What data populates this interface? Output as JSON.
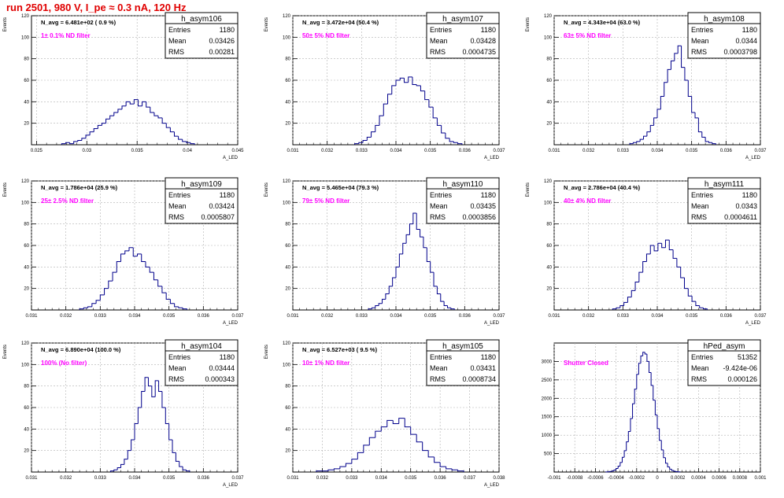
{
  "page": {
    "title": "run 2501,   980 V, I_pe ≈ 0.3 nA, 120 Hz"
  },
  "colors": {
    "title": "#e00000",
    "histogram": "#00008b",
    "filter_label": "#ff00ff",
    "grid": "#b0b0b0"
  },
  "chart_data": [
    {
      "type": "bar",
      "name": "h_asym106",
      "stats": {
        "entries_label": "Entries",
        "entries": "1180",
        "mean_label": "Mean",
        "mean": "0.03426",
        "rms_label": "RMS",
        "rms": "0.00281"
      },
      "navg": "N_avg = 6.481e+02 ( 0.9 %)",
      "filter": "1± 0.1% ND filter",
      "ylabel": "Events",
      "xlabel": "A_LED",
      "xlim": [
        0.0245,
        0.045
      ],
      "ylim": [
        0,
        120
      ],
      "xticks": [
        0.025,
        0.03,
        0.035,
        0.04,
        0.045
      ],
      "xtick_labels": [
        "0.025",
        "0.03",
        "0.035",
        "0.04",
        "0.045"
      ],
      "yticks": [
        20,
        40,
        60,
        80,
        100,
        120
      ],
      "ytick_labels": [
        "20",
        "40",
        "60",
        "80",
        "100",
        "120"
      ],
      "bin_start": 0.0275,
      "bin_width": 0.0004,
      "values": [
        1,
        2,
        1,
        3,
        4,
        6,
        9,
        12,
        15,
        18,
        20,
        24,
        27,
        30,
        33,
        36,
        40,
        38,
        42,
        36,
        40,
        35,
        30,
        27,
        25,
        20,
        16,
        12,
        8,
        5,
        3,
        2,
        1
      ]
    },
    {
      "type": "bar",
      "name": "h_asym107",
      "stats": {
        "entries_label": "Entries",
        "entries": "1180",
        "mean_label": "Mean",
        "mean": "0.03428",
        "rms_label": "RMS",
        "rms": "0.0004735"
      },
      "navg": "N_avg = 3.472e+04 (50.4 %)",
      "filter": "50± 5% ND filter",
      "ylabel": "Events",
      "xlabel": "A_LED",
      "xlim": [
        0.031,
        0.037
      ],
      "ylim": [
        0,
        120
      ],
      "xticks": [
        0.031,
        0.032,
        0.033,
        0.034,
        0.035,
        0.036,
        0.037
      ],
      "xtick_labels": [
        "0.031",
        "0.032",
        "0.033",
        "0.034",
        "0.035",
        "0.036",
        "0.037"
      ],
      "yticks": [
        20,
        40,
        60,
        80,
        100,
        120
      ],
      "ytick_labels": [
        "20",
        "40",
        "60",
        "80",
        "100",
        "120"
      ],
      "bin_start": 0.0328,
      "bin_width": 0.00012,
      "values": [
        1,
        2,
        4,
        7,
        12,
        18,
        27,
        38,
        47,
        55,
        60,
        62,
        58,
        63,
        56,
        55,
        50,
        42,
        35,
        25,
        18,
        11,
        6,
        3,
        2,
        1
      ]
    },
    {
      "type": "bar",
      "name": "h_asym108",
      "stats": {
        "entries_label": "Entries",
        "entries": "1180",
        "mean_label": "Mean",
        "mean": "0.0344",
        "rms_label": "RMS",
        "rms": "0.0003798"
      },
      "navg": "N_avg = 4.343e+04 (63.0 %)",
      "filter": "63± 5% ND filter",
      "ylabel": "Events",
      "xlabel": "A_LED",
      "xlim": [
        0.031,
        0.037
      ],
      "ylim": [
        0,
        120
      ],
      "xticks": [
        0.031,
        0.032,
        0.033,
        0.034,
        0.035,
        0.036,
        0.037
      ],
      "xtick_labels": [
        "0.031",
        "0.032",
        "0.033",
        "0.034",
        "0.035",
        "0.036",
        "0.037"
      ],
      "yticks": [
        20,
        40,
        60,
        80,
        100,
        120
      ],
      "ytick_labels": [
        "20",
        "40",
        "60",
        "80",
        "100",
        "120"
      ],
      "bin_start": 0.0332,
      "bin_width": 0.0001,
      "values": [
        1,
        2,
        3,
        5,
        8,
        12,
        18,
        25,
        33,
        45,
        58,
        70,
        78,
        85,
        92,
        72,
        60,
        45,
        30,
        25,
        12,
        7,
        3,
        2,
        1
      ]
    },
    {
      "type": "bar",
      "name": "h_asym109",
      "stats": {
        "entries_label": "Entries",
        "entries": "1180",
        "mean_label": "Mean",
        "mean": "0.03424",
        "rms_label": "RMS",
        "rms": "0.0005807"
      },
      "navg": "N_avg = 1.786e+04 (25.9 %)",
      "filter": "25± 2.5% ND filter",
      "ylabel": "Events",
      "xlabel": "A_LED",
      "xlim": [
        0.031,
        0.037
      ],
      "ylim": [
        0,
        120
      ],
      "xticks": [
        0.031,
        0.032,
        0.033,
        0.034,
        0.035,
        0.036,
        0.037
      ],
      "xtick_labels": [
        "0.031",
        "0.032",
        "0.033",
        "0.034",
        "0.035",
        "0.036",
        "0.037"
      ],
      "yticks": [
        20,
        40,
        60,
        80,
        100,
        120
      ],
      "ytick_labels": [
        "20",
        "40",
        "60",
        "80",
        "100",
        "120"
      ],
      "bin_start": 0.0324,
      "bin_width": 0.00012,
      "values": [
        1,
        2,
        3,
        6,
        9,
        14,
        20,
        27,
        35,
        45,
        52,
        55,
        58,
        50,
        52,
        45,
        40,
        35,
        28,
        22,
        16,
        10,
        6,
        3,
        2,
        1
      ]
    },
    {
      "type": "bar",
      "name": "h_asym110",
      "stats": {
        "entries_label": "Entries",
        "entries": "1180",
        "mean_label": "Mean",
        "mean": "0.03435",
        "rms_label": "RMS",
        "rms": "0.0003856"
      },
      "navg": "N_avg = 5.465e+04 (79.3 %)",
      "filter": "79± 5% ND filter",
      "ylabel": "Events",
      "xlabel": "A_LED",
      "xlim": [
        0.031,
        0.037
      ],
      "ylim": [
        0,
        120
      ],
      "xticks": [
        0.031,
        0.032,
        0.033,
        0.034,
        0.035,
        0.036,
        0.037
      ],
      "xtick_labels": [
        "0.031",
        "0.032",
        "0.033",
        "0.034",
        "0.035",
        "0.036",
        "0.037"
      ],
      "yticks": [
        20,
        40,
        60,
        80,
        100,
        120
      ],
      "ytick_labels": [
        "20",
        "40",
        "60",
        "80",
        "100",
        "120"
      ],
      "bin_start": 0.0332,
      "bin_width": 0.0001,
      "values": [
        1,
        2,
        4,
        6,
        10,
        15,
        22,
        30,
        40,
        52,
        62,
        70,
        80,
        90,
        75,
        68,
        58,
        45,
        35,
        22,
        15,
        8,
        4,
        2,
        1
      ]
    },
    {
      "type": "bar",
      "name": "h_asym111",
      "stats": {
        "entries_label": "Entries",
        "entries": "1180",
        "mean_label": "Mean",
        "mean": "0.0343",
        "rms_label": "RMS",
        "rms": "0.0004611"
      },
      "navg": "N_avg = 2.786e+04 (40.4 %)",
      "filter": "40± 4% ND filter",
      "ylabel": "Events",
      "xlabel": "A_LED",
      "xlim": [
        0.031,
        0.037
      ],
      "ylim": [
        0,
        120
      ],
      "xticks": [
        0.031,
        0.032,
        0.033,
        0.034,
        0.035,
        0.036,
        0.037
      ],
      "xtick_labels": [
        "0.031",
        "0.032",
        "0.033",
        "0.034",
        "0.035",
        "0.036",
        "0.037"
      ],
      "yticks": [
        20,
        40,
        60,
        80,
        100,
        120
      ],
      "ytick_labels": [
        "20",
        "40",
        "60",
        "80",
        "100",
        "120"
      ],
      "bin_start": 0.0327,
      "bin_width": 0.00011,
      "values": [
        1,
        2,
        4,
        7,
        12,
        18,
        26,
        35,
        45,
        52,
        60,
        55,
        62,
        58,
        65,
        56,
        48,
        40,
        30,
        20,
        13,
        8,
        4,
        2,
        1
      ]
    },
    {
      "type": "bar",
      "name": "h_asym104",
      "stats": {
        "entries_label": "Entries",
        "entries": "1180",
        "mean_label": "Mean",
        "mean": "0.03444",
        "rms_label": "RMS",
        "rms": "0.000343"
      },
      "navg": "N_avg = 6.890e+04 (100.0 %)",
      "filter": "100% (No filter)",
      "ylabel": "Events",
      "xlabel": "A_LED",
      "xlim": [
        0.031,
        0.037
      ],
      "ylim": [
        0,
        120
      ],
      "xticks": [
        0.031,
        0.032,
        0.033,
        0.034,
        0.035,
        0.036,
        0.037
      ],
      "xtick_labels": [
        "0.031",
        "0.032",
        "0.033",
        "0.034",
        "0.035",
        "0.036",
        "0.037"
      ],
      "yticks": [
        20,
        40,
        60,
        80,
        100,
        120
      ],
      "ytick_labels": [
        "20",
        "40",
        "60",
        "80",
        "100",
        "120"
      ],
      "bin_start": 0.0333,
      "bin_width": 0.0001,
      "values": [
        1,
        2,
        4,
        7,
        12,
        20,
        30,
        45,
        60,
        75,
        88,
        80,
        70,
        85,
        75,
        60,
        45,
        30,
        18,
        10,
        5,
        2,
        1
      ]
    },
    {
      "type": "bar",
      "name": "h_asym105",
      "stats": {
        "entries_label": "Entries",
        "entries": "1180",
        "mean_label": "Mean",
        "mean": "0.03431",
        "rms_label": "RMS",
        "rms": "0.0008734"
      },
      "navg": "N_avg = 6.527e+03 ( 9.5 %)",
      "filter": "10± 1% ND filter",
      "ylabel": "Events",
      "xlabel": "A_LED",
      "xlim": [
        0.031,
        0.038
      ],
      "ylim": [
        0,
        120
      ],
      "xticks": [
        0.031,
        0.032,
        0.033,
        0.034,
        0.035,
        0.036,
        0.037,
        0.038
      ],
      "xtick_labels": [
        "0.031",
        "0.032",
        "0.033",
        "0.034",
        "0.035",
        "0.036",
        "0.037",
        "0.038"
      ],
      "yticks": [
        20,
        40,
        60,
        80,
        100,
        120
      ],
      "ytick_labels": [
        "20",
        "40",
        "60",
        "80",
        "100",
        "120"
      ],
      "bin_start": 0.0318,
      "bin_width": 0.0002,
      "values": [
        1,
        1,
        2,
        3,
        5,
        8,
        12,
        18,
        25,
        32,
        38,
        42,
        48,
        45,
        50,
        42,
        35,
        28,
        20,
        14,
        9,
        5,
        3,
        2,
        1
      ]
    },
    {
      "type": "bar",
      "name": "hPed_asym",
      "stats": {
        "entries_label": "Entries",
        "entries": "51352",
        "mean_label": "Mean",
        "mean": "-9.424e-06",
        "rms_label": "RMS",
        "rms": "0.000126"
      },
      "navg": "",
      "filter": "Shutter Closed",
      "ylabel": "",
      "xlabel": "",
      "xlim": [
        -0.001,
        0.001
      ],
      "ylim": [
        0,
        3500
      ],
      "xticks": [
        -0.001,
        -0.0008,
        -0.0006,
        -0.0004,
        -0.0002,
        0,
        0.0002,
        0.0004,
        0.0006,
        0.0008,
        0.001
      ],
      "xtick_labels": [
        "-0.001",
        "-0.0008",
        "-0.0006",
        "-0.0004",
        "-0.0002",
        "0",
        "0.0002",
        "0.0004",
        "0.0006",
        "0.0008",
        "0.001"
      ],
      "yticks": [
        500,
        1000,
        1500,
        2000,
        2500,
        3000
      ],
      "ytick_labels": [
        "500",
        "1000",
        "1500",
        "2000",
        "2500",
        "3000"
      ],
      "bin_start": -0.0005,
      "bin_width": 2e-05,
      "values": [
        3,
        8,
        15,
        30,
        55,
        95,
        160,
        260,
        400,
        580,
        820,
        1100,
        1450,
        1850,
        2250,
        2650,
        2950,
        3150,
        3250,
        3200,
        3000,
        2700,
        2350,
        1950,
        1550,
        1180,
        860,
        600,
        390,
        240,
        140,
        78,
        40,
        20,
        10,
        5
      ]
    }
  ]
}
